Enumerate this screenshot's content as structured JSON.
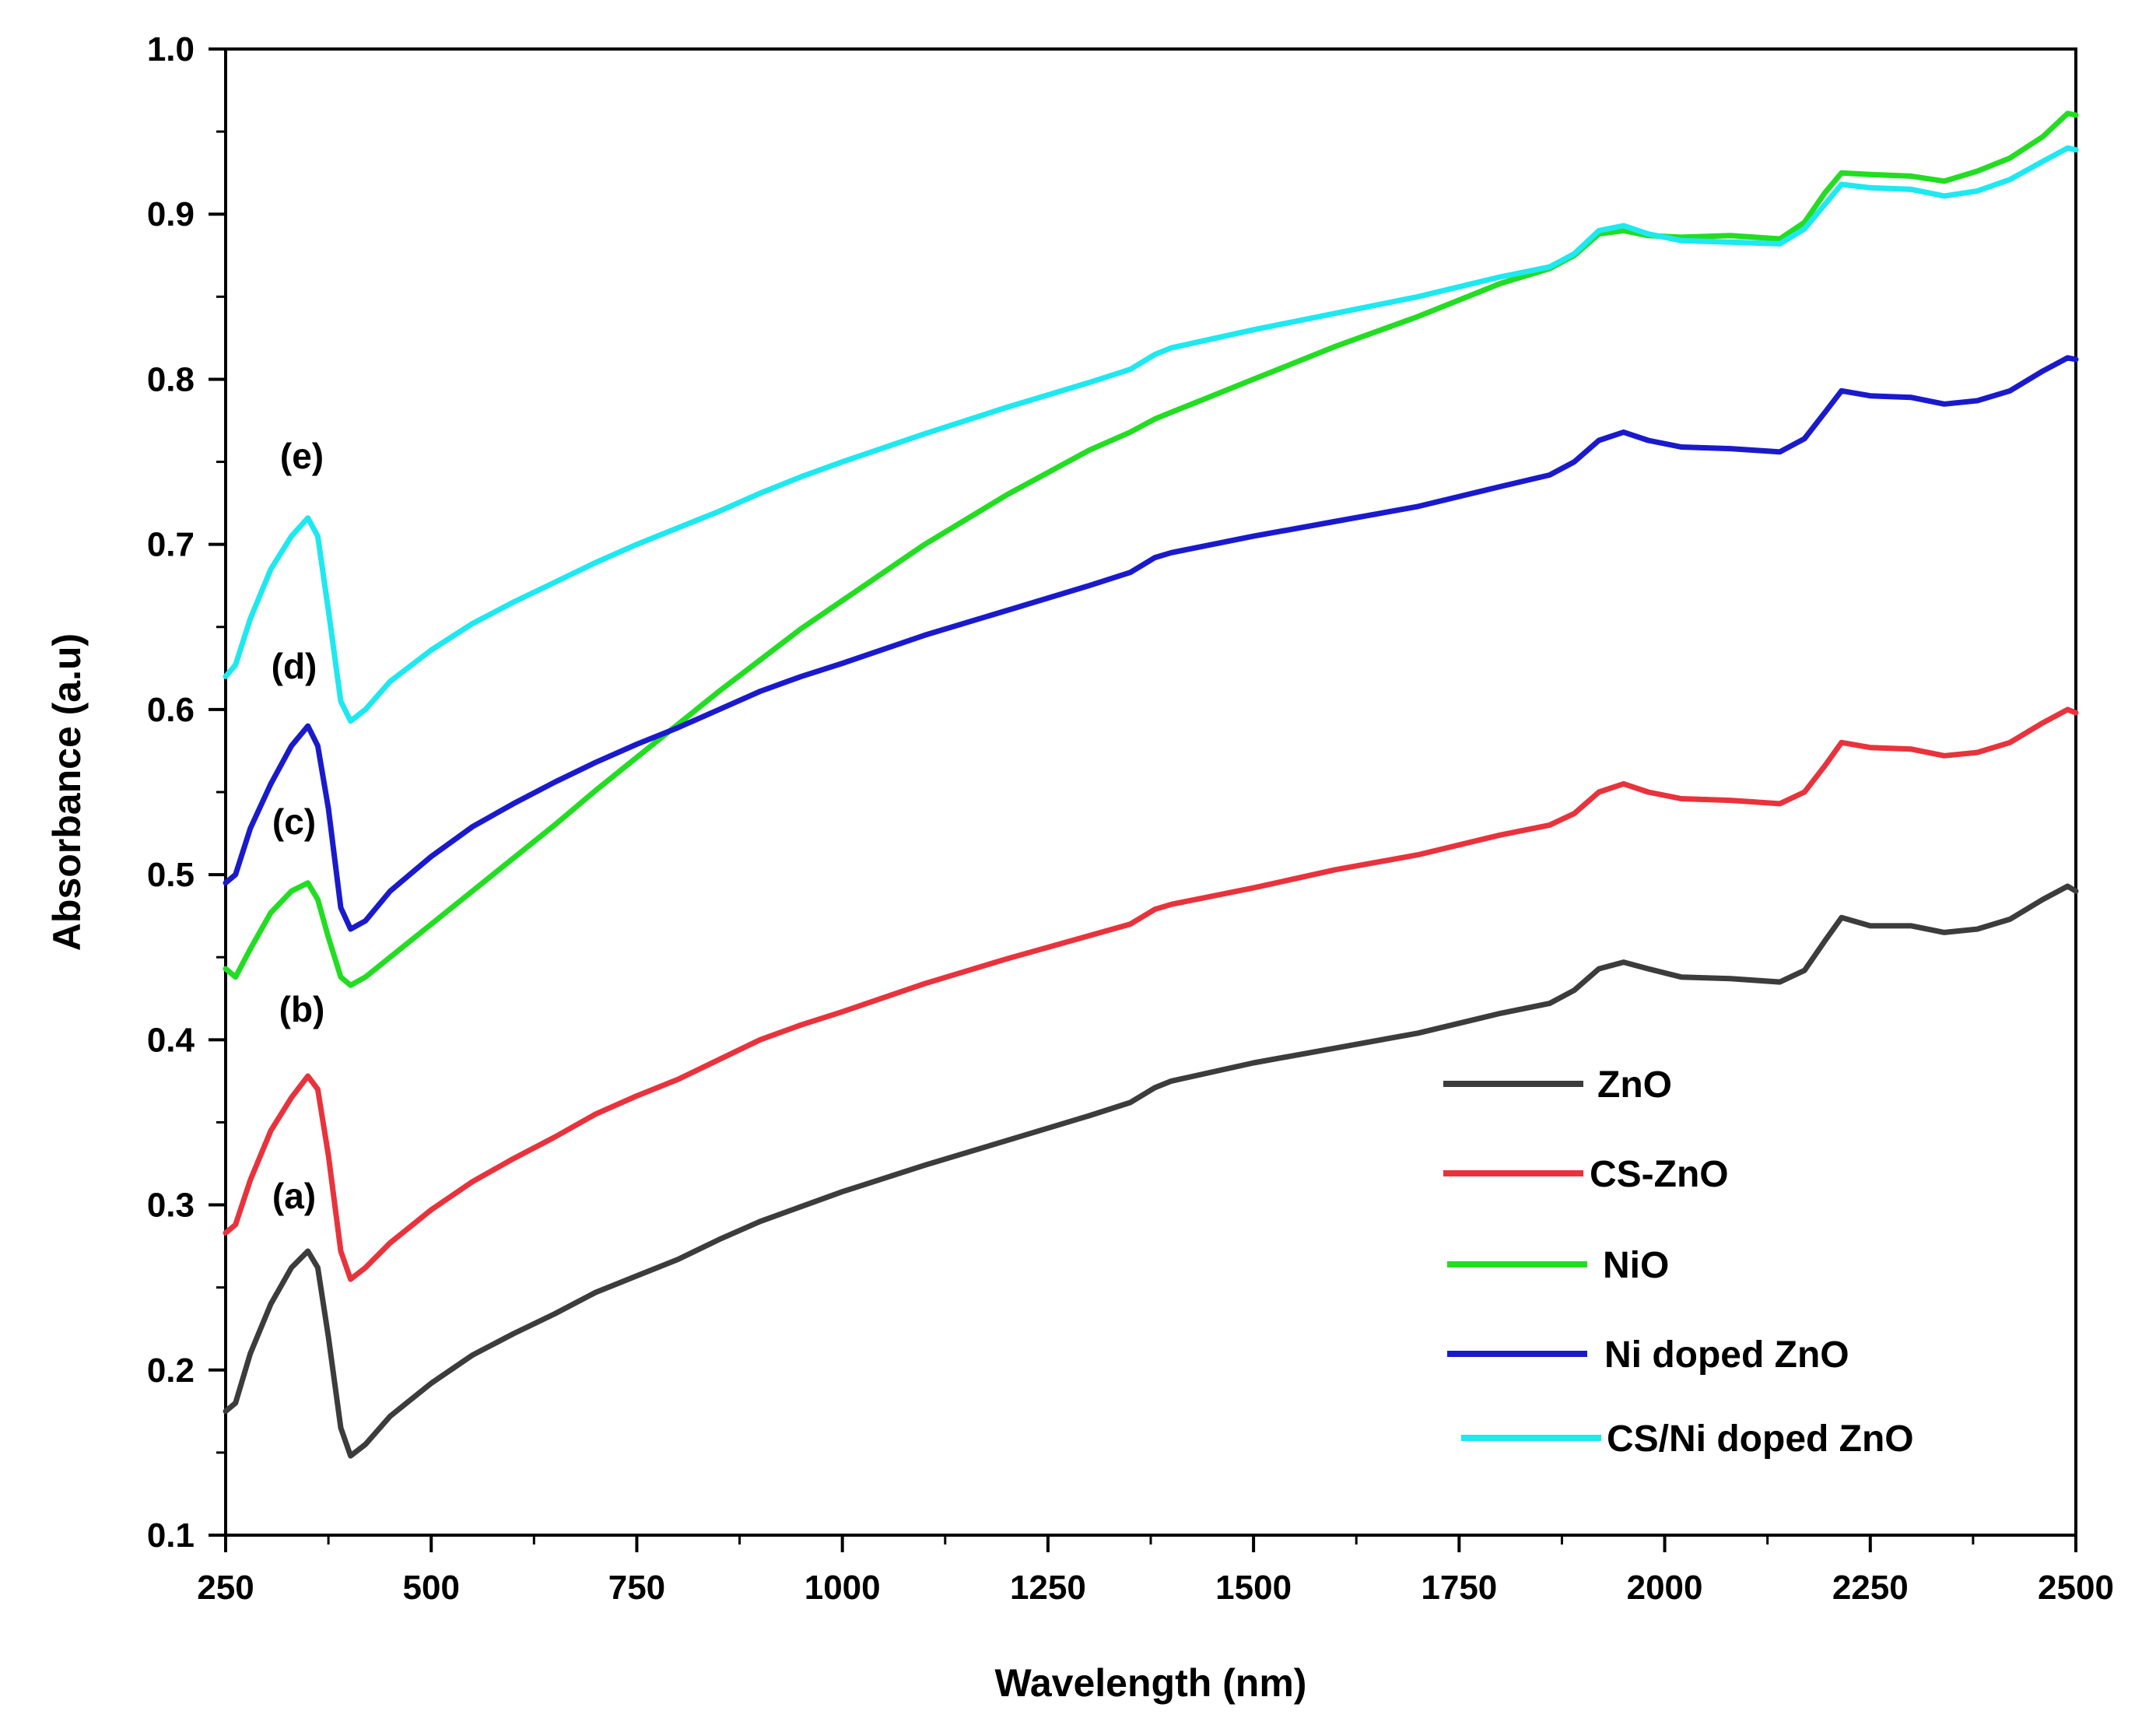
{
  "chart_data": {
    "type": "line",
    "title": "",
    "xlabel": "Wavelength (nm)",
    "ylabel": "Absorbance (a.u)",
    "xlim": [
      250,
      2500
    ],
    "ylim": [
      0.1,
      1.0
    ],
    "xticks": [
      "250",
      "500",
      "750",
      "1000",
      "1250",
      "1500",
      "1750",
      "2000",
      "2250",
      "2500"
    ],
    "yticks": [
      "0.1",
      "0.2",
      "0.3",
      "0.4",
      "0.5",
      "0.6",
      "0.7",
      "0.8",
      "0.9",
      "1.0"
    ],
    "grid": false,
    "legend_position": "bottom-right",
    "series": [
      {
        "name": "ZnO",
        "tag": "(a)",
        "color": "#3c3c3c",
        "points": [
          [
            250,
            0.175
          ],
          [
            262,
            0.18
          ],
          [
            280,
            0.21
          ],
          [
            305,
            0.24
          ],
          [
            330,
            0.262
          ],
          [
            350,
            0.272
          ],
          [
            362,
            0.262
          ],
          [
            375,
            0.22
          ],
          [
            390,
            0.165
          ],
          [
            402,
            0.148
          ],
          [
            420,
            0.155
          ],
          [
            450,
            0.172
          ],
          [
            500,
            0.192
          ],
          [
            550,
            0.209
          ],
          [
            600,
            0.222
          ],
          [
            650,
            0.234
          ],
          [
            700,
            0.247
          ],
          [
            750,
            0.257
          ],
          [
            800,
            0.267
          ],
          [
            850,
            0.279
          ],
          [
            900,
            0.29
          ],
          [
            950,
            0.299
          ],
          [
            1000,
            0.308
          ],
          [
            1100,
            0.324
          ],
          [
            1200,
            0.339
          ],
          [
            1300,
            0.354
          ],
          [
            1350,
            0.362
          ],
          [
            1380,
            0.371
          ],
          [
            1400,
            0.375
          ],
          [
            1500,
            0.386
          ],
          [
            1600,
            0.395
          ],
          [
            1700,
            0.404
          ],
          [
            1800,
            0.416
          ],
          [
            1860,
            0.422
          ],
          [
            1890,
            0.43
          ],
          [
            1920,
            0.443
          ],
          [
            1950,
            0.447
          ],
          [
            1980,
            0.443
          ],
          [
            2020,
            0.438
          ],
          [
            2080,
            0.437
          ],
          [
            2140,
            0.435
          ],
          [
            2170,
            0.442
          ],
          [
            2195,
            0.46
          ],
          [
            2215,
            0.474
          ],
          [
            2250,
            0.469
          ],
          [
            2300,
            0.469
          ],
          [
            2340,
            0.465
          ],
          [
            2380,
            0.467
          ],
          [
            2420,
            0.473
          ],
          [
            2460,
            0.485
          ],
          [
            2490,
            0.493
          ],
          [
            2500,
            0.49
          ]
        ]
      },
      {
        "name": "CS-ZnO",
        "tag": "(b)",
        "color": "#e8333c",
        "points": [
          [
            250,
            0.283
          ],
          [
            262,
            0.288
          ],
          [
            280,
            0.315
          ],
          [
            305,
            0.345
          ],
          [
            330,
            0.365
          ],
          [
            350,
            0.378
          ],
          [
            362,
            0.37
          ],
          [
            375,
            0.33
          ],
          [
            390,
            0.272
          ],
          [
            402,
            0.255
          ],
          [
            420,
            0.262
          ],
          [
            450,
            0.277
          ],
          [
            500,
            0.297
          ],
          [
            550,
            0.314
          ],
          [
            600,
            0.328
          ],
          [
            650,
            0.341
          ],
          [
            700,
            0.355
          ],
          [
            750,
            0.366
          ],
          [
            800,
            0.376
          ],
          [
            850,
            0.388
          ],
          [
            900,
            0.4
          ],
          [
            950,
            0.409
          ],
          [
            1000,
            0.417
          ],
          [
            1100,
            0.434
          ],
          [
            1200,
            0.449
          ],
          [
            1300,
            0.463
          ],
          [
            1350,
            0.47
          ],
          [
            1380,
            0.479
          ],
          [
            1400,
            0.482
          ],
          [
            1500,
            0.492
          ],
          [
            1600,
            0.503
          ],
          [
            1700,
            0.512
          ],
          [
            1800,
            0.524
          ],
          [
            1860,
            0.53
          ],
          [
            1890,
            0.537
          ],
          [
            1920,
            0.55
          ],
          [
            1950,
            0.555
          ],
          [
            1980,
            0.55
          ],
          [
            2020,
            0.546
          ],
          [
            2080,
            0.545
          ],
          [
            2140,
            0.543
          ],
          [
            2170,
            0.55
          ],
          [
            2195,
            0.566
          ],
          [
            2215,
            0.58
          ],
          [
            2250,
            0.577
          ],
          [
            2300,
            0.576
          ],
          [
            2340,
            0.572
          ],
          [
            2380,
            0.574
          ],
          [
            2420,
            0.58
          ],
          [
            2460,
            0.592
          ],
          [
            2490,
            0.6
          ],
          [
            2500,
            0.598
          ]
        ]
      },
      {
        "name": "NiO",
        "tag": "(c)",
        "color": "#22dd22",
        "points": [
          [
            250,
            0.443
          ],
          [
            262,
            0.438
          ],
          [
            280,
            0.455
          ],
          [
            305,
            0.477
          ],
          [
            330,
            0.49
          ],
          [
            350,
            0.495
          ],
          [
            362,
            0.485
          ],
          [
            375,
            0.462
          ],
          [
            390,
            0.438
          ],
          [
            402,
            0.433
          ],
          [
            420,
            0.438
          ],
          [
            450,
            0.45
          ],
          [
            500,
            0.47
          ],
          [
            550,
            0.49
          ],
          [
            600,
            0.51
          ],
          [
            650,
            0.53
          ],
          [
            700,
            0.551
          ],
          [
            750,
            0.571
          ],
          [
            800,
            0.591
          ],
          [
            850,
            0.611
          ],
          [
            900,
            0.63
          ],
          [
            950,
            0.649
          ],
          [
            1000,
            0.666
          ],
          [
            1100,
            0.7
          ],
          [
            1200,
            0.73
          ],
          [
            1300,
            0.757
          ],
          [
            1350,
            0.768
          ],
          [
            1380,
            0.776
          ],
          [
            1400,
            0.78
          ],
          [
            1500,
            0.8
          ],
          [
            1600,
            0.82
          ],
          [
            1700,
            0.838
          ],
          [
            1800,
            0.858
          ],
          [
            1860,
            0.867
          ],
          [
            1890,
            0.875
          ],
          [
            1920,
            0.888
          ],
          [
            1950,
            0.89
          ],
          [
            1980,
            0.887
          ],
          [
            2020,
            0.886
          ],
          [
            2080,
            0.887
          ],
          [
            2140,
            0.885
          ],
          [
            2170,
            0.895
          ],
          [
            2195,
            0.913
          ],
          [
            2215,
            0.925
          ],
          [
            2250,
            0.924
          ],
          [
            2300,
            0.923
          ],
          [
            2340,
            0.92
          ],
          [
            2380,
            0.926
          ],
          [
            2420,
            0.934
          ],
          [
            2460,
            0.947
          ],
          [
            2490,
            0.961
          ],
          [
            2500,
            0.96
          ]
        ]
      },
      {
        "name": "Ni doped ZnO",
        "tag": "(d)",
        "color": "#1a1acc",
        "points": [
          [
            250,
            0.495
          ],
          [
            262,
            0.5
          ],
          [
            280,
            0.528
          ],
          [
            305,
            0.555
          ],
          [
            330,
            0.578
          ],
          [
            350,
            0.59
          ],
          [
            362,
            0.578
          ],
          [
            375,
            0.54
          ],
          [
            390,
            0.48
          ],
          [
            402,
            0.467
          ],
          [
            420,
            0.472
          ],
          [
            450,
            0.49
          ],
          [
            500,
            0.511
          ],
          [
            550,
            0.529
          ],
          [
            600,
            0.543
          ],
          [
            650,
            0.556
          ],
          [
            700,
            0.568
          ],
          [
            750,
            0.579
          ],
          [
            800,
            0.589
          ],
          [
            850,
            0.6
          ],
          [
            900,
            0.611
          ],
          [
            950,
            0.62
          ],
          [
            1000,
            0.628
          ],
          [
            1100,
            0.645
          ],
          [
            1200,
            0.66
          ],
          [
            1300,
            0.675
          ],
          [
            1350,
            0.683
          ],
          [
            1380,
            0.692
          ],
          [
            1400,
            0.695
          ],
          [
            1500,
            0.705
          ],
          [
            1600,
            0.714
          ],
          [
            1700,
            0.723
          ],
          [
            1800,
            0.735
          ],
          [
            1860,
            0.742
          ],
          [
            1890,
            0.75
          ],
          [
            1920,
            0.763
          ],
          [
            1950,
            0.768
          ],
          [
            1980,
            0.763
          ],
          [
            2020,
            0.759
          ],
          [
            2080,
            0.758
          ],
          [
            2140,
            0.756
          ],
          [
            2170,
            0.764
          ],
          [
            2195,
            0.78
          ],
          [
            2215,
            0.793
          ],
          [
            2250,
            0.79
          ],
          [
            2300,
            0.789
          ],
          [
            2340,
            0.785
          ],
          [
            2380,
            0.787
          ],
          [
            2420,
            0.793
          ],
          [
            2460,
            0.805
          ],
          [
            2490,
            0.813
          ],
          [
            2500,
            0.812
          ]
        ]
      },
      {
        "name": "CS/Ni doped ZnO",
        "tag": "(e)",
        "color": "#1ee8f0",
        "points": [
          [
            250,
            0.62
          ],
          [
            262,
            0.627
          ],
          [
            280,
            0.655
          ],
          [
            305,
            0.685
          ],
          [
            330,
            0.705
          ],
          [
            350,
            0.716
          ],
          [
            362,
            0.705
          ],
          [
            375,
            0.66
          ],
          [
            390,
            0.605
          ],
          [
            402,
            0.593
          ],
          [
            420,
            0.6
          ],
          [
            450,
            0.617
          ],
          [
            500,
            0.636
          ],
          [
            550,
            0.652
          ],
          [
            600,
            0.665
          ],
          [
            650,
            0.677
          ],
          [
            700,
            0.689
          ],
          [
            750,
            0.7
          ],
          [
            800,
            0.71
          ],
          [
            850,
            0.72
          ],
          [
            900,
            0.731
          ],
          [
            950,
            0.741
          ],
          [
            1000,
            0.75
          ],
          [
            1100,
            0.767
          ],
          [
            1200,
            0.783
          ],
          [
            1300,
            0.798
          ],
          [
            1350,
            0.806
          ],
          [
            1380,
            0.815
          ],
          [
            1400,
            0.819
          ],
          [
            1500,
            0.83
          ],
          [
            1600,
            0.84
          ],
          [
            1700,
            0.85
          ],
          [
            1800,
            0.862
          ],
          [
            1860,
            0.868
          ],
          [
            1890,
            0.876
          ],
          [
            1920,
            0.89
          ],
          [
            1950,
            0.893
          ],
          [
            1980,
            0.888
          ],
          [
            2020,
            0.884
          ],
          [
            2080,
            0.883
          ],
          [
            2140,
            0.882
          ],
          [
            2170,
            0.891
          ],
          [
            2195,
            0.906
          ],
          [
            2215,
            0.918
          ],
          [
            2250,
            0.916
          ],
          [
            2300,
            0.915
          ],
          [
            2340,
            0.911
          ],
          [
            2380,
            0.914
          ],
          [
            2420,
            0.921
          ],
          [
            2460,
            0.932
          ],
          [
            2490,
            0.94
          ],
          [
            2500,
            0.939
          ]
        ]
      }
    ]
  }
}
